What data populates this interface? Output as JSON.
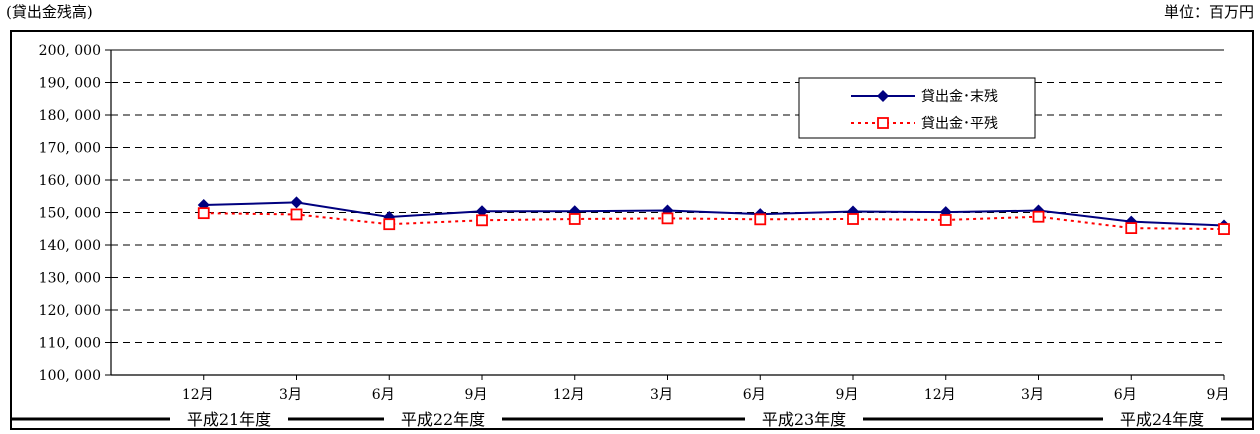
{
  "captions": {
    "left": "(貸出金残高)",
    "right": "単位：百万円"
  },
  "chart_data": {
    "type": "line",
    "title": "",
    "xlabel": "",
    "ylabel": "",
    "ylim": [
      100000,
      200000
    ],
    "ytick_step": 10000,
    "ytick_labels": [
      "100, 000",
      "110, 000",
      "120, 000",
      "130, 000",
      "140, 000",
      "150, 000",
      "160, 000",
      "170, 000",
      "180, 000",
      "190, 000",
      "200, 000"
    ],
    "grid": "horizontal-dashed",
    "legend_position": "top-right",
    "categories": [
      "12月",
      "3月",
      "6月",
      "9月",
      "12月",
      "3月",
      "6月",
      "9月",
      "12月",
      "3月",
      "6月",
      "9月"
    ],
    "fiscal_years": [
      {
        "label": "平成21年度",
        "start": 0,
        "end": 0
      },
      {
        "label": "平成22年度",
        "start": 1,
        "end": 4
      },
      {
        "label": "平成23年度",
        "start": 5,
        "end": 8
      },
      {
        "label": "平成24年度",
        "start": 9,
        "end": 11
      }
    ],
    "series": [
      {
        "name": "貸出金･末残",
        "color": "#00007f",
        "marker": "diamond",
        "line": "solid",
        "values": [
          152300,
          153100,
          148600,
          150400,
          150400,
          150600,
          149500,
          150300,
          150100,
          150600,
          147200,
          146000
        ]
      },
      {
        "name": "貸出金･平残",
        "color": "#ff0000",
        "marker": "square",
        "line": "dotted",
        "values": [
          149800,
          149400,
          146400,
          147600,
          148000,
          148200,
          147900,
          148000,
          147700,
          148700,
          145200,
          144900
        ]
      }
    ]
  }
}
